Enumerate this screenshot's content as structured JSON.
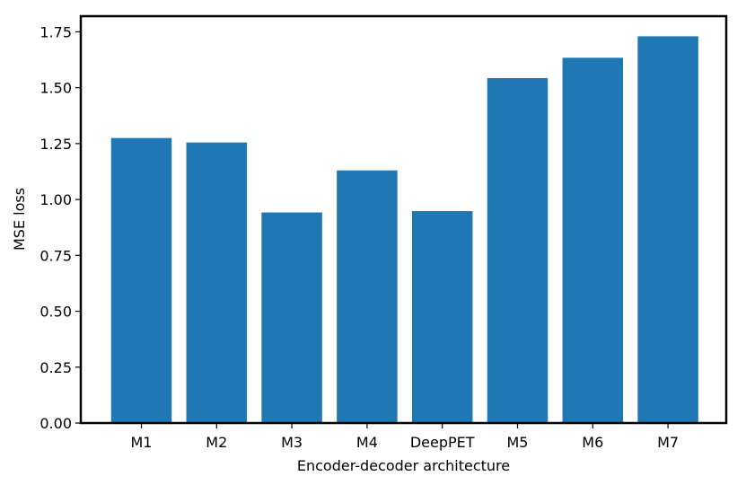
{
  "chart_data": {
    "type": "bar",
    "categories": [
      "M1",
      "M2",
      "M3",
      "M4",
      "DeepPET",
      "M5",
      "M6",
      "M7"
    ],
    "values": [
      1.275,
      1.255,
      0.942,
      1.13,
      0.948,
      1.543,
      1.634,
      1.73
    ],
    "title": "",
    "xlabel": "Encoder-decoder architecture",
    "ylabel": "MSE loss",
    "ylim": [
      0,
      1.82
    ],
    "yticks": [
      0.0,
      0.25,
      0.5,
      0.75,
      1.0,
      1.25,
      1.5,
      1.75
    ],
    "ytick_labels": [
      "0.00",
      "0.25",
      "0.50",
      "0.75",
      "1.00",
      "1.25",
      "1.50",
      "1.75"
    ],
    "grid": false,
    "bar_color": "#1f77b4"
  }
}
